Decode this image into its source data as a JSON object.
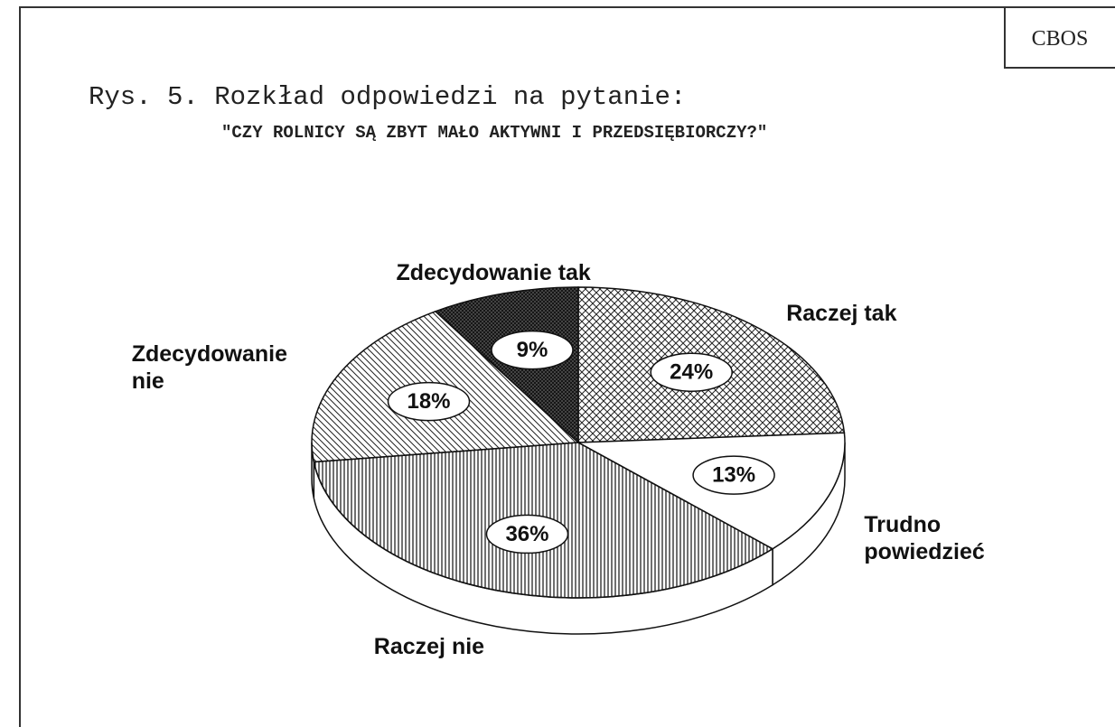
{
  "chart_data": {
    "type": "pie3d",
    "title": "Rys. 5. Rozkład odpowiedzi na pytanie:",
    "subtitle": "\"CZY ROLNICY SĄ ZBYT MAŁO AKTYWNI I PRZEDSIĘBIORCZY?\"",
    "source": "CBOS",
    "categories": [
      "Raczej tak",
      "Trudno powiedzieć",
      "Raczej nie",
      "Zdecydowanie nie",
      "Zdecydowanie tak"
    ],
    "values": [
      24,
      13,
      36,
      18,
      9
    ],
    "value_labels": [
      "24%",
      "13%",
      "36%",
      "18%",
      "9%"
    ],
    "patterns": [
      "crosshatch",
      "none",
      "vertical",
      "diagonal",
      "dense-crosshatch"
    ]
  }
}
